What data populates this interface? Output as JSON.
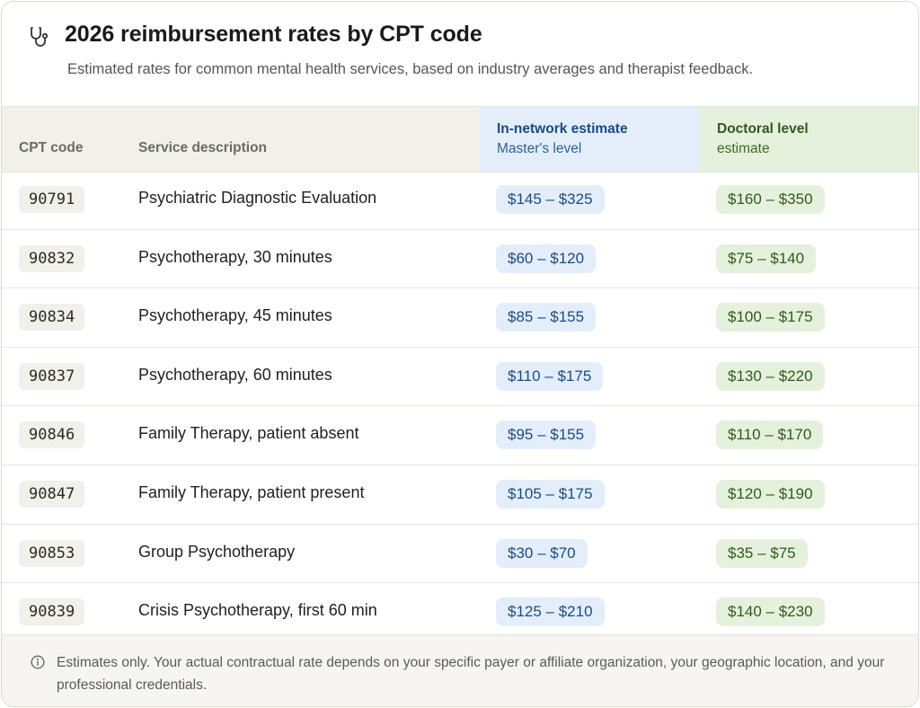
{
  "header": {
    "icon": "stethoscope-icon",
    "title": "2026 reimbursement rates by CPT code",
    "subtitle": "Estimated rates for common mental health services, based on industry averages and therapist feedback."
  },
  "table": {
    "columns": {
      "code": "CPT code",
      "description": "Service description",
      "in_network_line1": "In-network estimate",
      "in_network_line2": "Master's level",
      "doctoral_line1": "Doctoral level",
      "doctoral_line2": "estimate"
    },
    "rows": [
      {
        "code": "90791",
        "description": "Psychiatric Diagnostic Evaluation",
        "in_network": "$145 – $325",
        "doctoral": "$160 – $350"
      },
      {
        "code": "90832",
        "description": "Psychotherapy, 30 minutes",
        "in_network": "$60 – $120",
        "doctoral": "$75 – $140"
      },
      {
        "code": "90834",
        "description": "Psychotherapy, 45 minutes",
        "in_network": "$85 – $155",
        "doctoral": "$100 – $175"
      },
      {
        "code": "90837",
        "description": "Psychotherapy, 60 minutes",
        "in_network": "$110 – $175",
        "doctoral": "$130 – $220"
      },
      {
        "code": "90846",
        "description": "Family Therapy, patient absent",
        "in_network": "$95 – $155",
        "doctoral": "$110 – $170"
      },
      {
        "code": "90847",
        "description": "Family Therapy, patient present",
        "in_network": "$105 – $175",
        "doctoral": "$120 – $190"
      },
      {
        "code": "90853",
        "description": "Group Psychotherapy",
        "in_network": "$30 – $70",
        "doctoral": "$35 – $75"
      },
      {
        "code": "90839",
        "description": "Crisis Psychotherapy, first 60 min",
        "in_network": "$125 – $210",
        "doctoral": "$140 – $230"
      }
    ]
  },
  "footer": {
    "icon": "info-icon",
    "note": "Estimates only. Your actual contractual rate depends on your specific payer or affiliate organization, your geographic location, and your professional credentials."
  },
  "colors": {
    "in_network_bg": "#e3eefa",
    "in_network_text": "#1c4a80",
    "doctoral_bg": "#e5f1dc",
    "doctoral_text": "#2f5a1c",
    "header_row_bg": "#f2f0ea"
  }
}
